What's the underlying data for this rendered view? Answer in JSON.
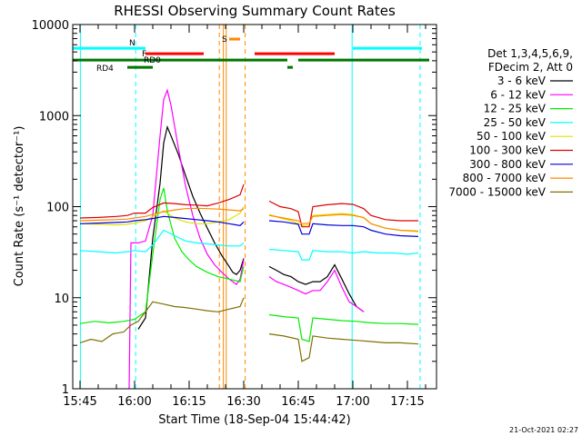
{
  "chart_data": {
    "type": "line",
    "title": "RHESSI Observing Summary Count Rates",
    "xlabel": "Start Time (18-Sep-04 15:44:42)",
    "ylabel": "Count Rate (s⁻¹ detector⁻¹)",
    "yscale": "log",
    "ylim": [
      1,
      10000
    ],
    "xlim": [
      -2,
      98
    ],
    "x_units": "minutes after 15:45",
    "x_ticks": [
      {
        "value": 0,
        "label": "15:45"
      },
      {
        "value": 15,
        "label": "16:00"
      },
      {
        "value": 30,
        "label": "16:15"
      },
      {
        "value": 45,
        "label": "16:30"
      },
      {
        "value": 60,
        "label": "16:45"
      },
      {
        "value": 75,
        "label": "17:00"
      },
      {
        "value": 90,
        "label": "17:15"
      }
    ],
    "y_ticks": [
      {
        "value": 1,
        "label": "1"
      },
      {
        "value": 10,
        "label": "10"
      },
      {
        "value": 100,
        "label": "100"
      },
      {
        "value": 1000,
        "label": "1000"
      },
      {
        "value": 10000,
        "label": "10000"
      }
    ],
    "legend_header": [
      "Det 1,3,4,5,6,9,",
      "FDecim 2, Att 0"
    ],
    "footer_date": "21-Oct-2021 02:27",
    "series": [
      {
        "name": "3 - 6 keV",
        "color": "#000000",
        "points": [
          [
            16,
            4.5
          ],
          [
            18,
            6
          ],
          [
            20,
            45
          ],
          [
            22,
            180
          ],
          [
            23,
            500
          ],
          [
            24,
            750
          ],
          [
            25,
            600
          ],
          [
            27,
            380
          ],
          [
            29,
            220
          ],
          [
            31,
            130
          ],
          [
            33,
            85
          ],
          [
            35,
            58
          ],
          [
            37,
            40
          ],
          [
            39,
            29
          ],
          [
            41,
            22
          ],
          [
            42,
            19
          ],
          [
            43,
            18
          ],
          [
            44,
            20
          ],
          [
            45,
            27
          ],
          null,
          [
            52,
            22
          ],
          [
            54,
            20
          ],
          [
            56,
            18
          ],
          [
            58,
            17
          ],
          [
            60,
            15
          ],
          [
            62,
            14
          ],
          [
            64,
            15
          ],
          [
            66,
            15
          ],
          [
            68,
            17
          ],
          [
            70,
            23
          ],
          [
            72,
            16
          ],
          [
            74,
            11
          ],
          [
            76,
            8
          ],
          [
            78,
            7
          ]
        ]
      },
      {
        "name": "6 - 12 keV",
        "color": "#ff00ff",
        "points": [
          [
            13.5,
            1
          ],
          [
            14,
            40
          ],
          [
            16,
            40
          ],
          [
            18,
            42
          ],
          [
            20,
            80
          ],
          [
            22,
            600
          ],
          [
            23,
            1500
          ],
          [
            24,
            1900
          ],
          [
            25,
            1300
          ],
          [
            27,
            450
          ],
          [
            29,
            170
          ],
          [
            31,
            80
          ],
          [
            33,
            45
          ],
          [
            35,
            30
          ],
          [
            37,
            23
          ],
          [
            39,
            19
          ],
          [
            41,
            16
          ],
          [
            43,
            14
          ],
          [
            44,
            16
          ],
          [
            45,
            26
          ],
          null,
          [
            52,
            17
          ],
          [
            54,
            15
          ],
          [
            56,
            14
          ],
          [
            58,
            13
          ],
          [
            60,
            12
          ],
          [
            62,
            11
          ],
          [
            64,
            12
          ],
          [
            66,
            12
          ],
          [
            68,
            15
          ],
          [
            70,
            20
          ],
          [
            72,
            13
          ],
          [
            74,
            9
          ],
          [
            76,
            8
          ],
          [
            78,
            7
          ]
        ]
      },
      {
        "name": "12 - 25 keV",
        "color": "#00ee00",
        "points": [
          [
            0,
            5.2
          ],
          [
            4,
            5.5
          ],
          [
            8,
            5.3
          ],
          [
            12,
            5.5
          ],
          [
            15,
            5.8
          ],
          [
            18,
            7
          ],
          [
            20,
            30
          ],
          [
            22,
            120
          ],
          [
            23,
            160
          ],
          [
            24,
            90
          ],
          [
            26,
            45
          ],
          [
            28,
            32
          ],
          [
            30,
            26
          ],
          [
            32,
            22
          ],
          [
            35,
            19
          ],
          [
            38,
            17
          ],
          [
            41,
            16
          ],
          [
            44,
            15
          ],
          [
            45,
            22
          ],
          null,
          [
            52,
            6.5
          ],
          [
            56,
            6.2
          ],
          [
            60,
            6
          ],
          [
            61,
            3.5
          ],
          [
            63,
            3.3
          ],
          [
            64,
            6
          ],
          [
            68,
            5.8
          ],
          [
            72,
            5.6
          ],
          [
            76,
            5.5
          ],
          [
            80,
            5.3
          ],
          [
            84,
            5.2
          ],
          [
            88,
            5.2
          ],
          [
            93,
            5.1
          ]
        ]
      },
      {
        "name": "25 - 50 keV",
        "color": "#00ffff",
        "points": [
          [
            0,
            33
          ],
          [
            5,
            32
          ],
          [
            10,
            31
          ],
          [
            13,
            32
          ],
          [
            15,
            33
          ],
          [
            18,
            32
          ],
          [
            20,
            38
          ],
          [
            23,
            55
          ],
          [
            26,
            48
          ],
          [
            29,
            42
          ],
          [
            32,
            40
          ],
          [
            35,
            39
          ],
          [
            38,
            38
          ],
          [
            41,
            37
          ],
          [
            44,
            37
          ],
          [
            45,
            40
          ],
          null,
          [
            52,
            34
          ],
          [
            56,
            33
          ],
          [
            60,
            32
          ],
          [
            61,
            26
          ],
          [
            63,
            26
          ],
          [
            64,
            33
          ],
          [
            68,
            32
          ],
          [
            72,
            32
          ],
          [
            75,
            31
          ],
          [
            78,
            32
          ],
          [
            82,
            31
          ],
          [
            86,
            31
          ],
          [
            90,
            30
          ],
          [
            93,
            31
          ]
        ]
      },
      {
        "name": "50 - 100 keV",
        "color": "#e0e000",
        "points": [
          [
            0,
            65
          ],
          [
            5,
            64
          ],
          [
            10,
            63
          ],
          [
            13,
            64
          ],
          [
            15,
            66
          ],
          [
            18,
            70
          ],
          [
            20,
            78
          ],
          [
            23,
            90
          ],
          [
            26,
            75
          ],
          [
            29,
            68
          ],
          [
            32,
            65
          ],
          [
            35,
            65
          ],
          [
            38,
            68
          ],
          [
            41,
            72
          ],
          [
            44,
            85
          ],
          [
            45,
            100
          ],
          null,
          [
            52,
            82
          ],
          [
            55,
            75
          ],
          [
            58,
            70
          ],
          [
            60,
            65
          ],
          [
            61,
            62
          ],
          [
            63,
            63
          ],
          [
            64,
            80
          ],
          [
            68,
            82
          ],
          [
            72,
            84
          ],
          [
            75,
            82
          ],
          [
            78,
            75
          ],
          [
            80,
            65
          ],
          [
            84,
            58
          ],
          [
            88,
            55
          ],
          [
            93,
            53
          ]
        ]
      },
      {
        "name": "100 - 300 keV",
        "color": "#dd0000",
        "points": [
          [
            0,
            75
          ],
          [
            5,
            76
          ],
          [
            10,
            78
          ],
          [
            13,
            80
          ],
          [
            15,
            85
          ],
          [
            18,
            85
          ],
          [
            20,
            98
          ],
          [
            23,
            110
          ],
          [
            26,
            108
          ],
          [
            29,
            105
          ],
          [
            32,
            104
          ],
          [
            35,
            102
          ],
          [
            38,
            110
          ],
          [
            41,
            120
          ],
          [
            44,
            135
          ],
          [
            45,
            175
          ],
          null,
          [
            52,
            115
          ],
          [
            55,
            100
          ],
          [
            58,
            95
          ],
          [
            60,
            88
          ],
          [
            61,
            60
          ],
          [
            63,
            60
          ],
          [
            64,
            100
          ],
          [
            68,
            105
          ],
          [
            72,
            108
          ],
          [
            75,
            106
          ],
          [
            78,
            95
          ],
          [
            80,
            80
          ],
          [
            84,
            72
          ],
          [
            88,
            70
          ],
          [
            93,
            70
          ]
        ]
      },
      {
        "name": "300 - 800 keV",
        "color": "#0000dd",
        "points": [
          [
            0,
            65
          ],
          [
            5,
            66
          ],
          [
            10,
            67
          ],
          [
            13,
            68
          ],
          [
            15,
            70
          ],
          [
            18,
            72
          ],
          [
            20,
            74
          ],
          [
            23,
            78
          ],
          [
            26,
            76
          ],
          [
            29,
            74
          ],
          [
            32,
            72
          ],
          [
            35,
            70
          ],
          [
            38,
            68
          ],
          [
            41,
            65
          ],
          [
            44,
            62
          ],
          [
            45,
            68
          ],
          null,
          [
            52,
            70
          ],
          [
            56,
            68
          ],
          [
            60,
            64
          ],
          [
            61,
            50
          ],
          [
            63,
            50
          ],
          [
            64,
            65
          ],
          [
            68,
            63
          ],
          [
            72,
            62
          ],
          [
            75,
            62
          ],
          [
            78,
            60
          ],
          [
            80,
            55
          ],
          [
            84,
            50
          ],
          [
            88,
            48
          ],
          [
            93,
            47
          ]
        ]
      },
      {
        "name": "800 - 7000 keV",
        "color": "#ff8800",
        "points": [
          [
            0,
            70
          ],
          [
            5,
            71
          ],
          [
            10,
            72
          ],
          [
            13,
            73
          ],
          [
            15,
            75
          ],
          [
            18,
            78
          ],
          [
            20,
            82
          ],
          [
            23,
            88
          ],
          [
            26,
            92
          ],
          [
            29,
            95
          ],
          [
            32,
            96
          ],
          [
            35,
            95
          ],
          [
            38,
            94
          ],
          [
            41,
            92
          ],
          [
            44,
            90
          ],
          [
            45,
            95
          ],
          null,
          [
            52,
            80
          ],
          [
            56,
            75
          ],
          [
            60,
            70
          ],
          [
            61,
            65
          ],
          [
            63,
            66
          ],
          [
            64,
            78
          ],
          [
            68,
            80
          ],
          [
            72,
            82
          ],
          [
            75,
            80
          ],
          [
            78,
            76
          ],
          [
            80,
            65
          ],
          [
            84,
            58
          ],
          [
            88,
            55
          ],
          [
            93,
            54
          ]
        ]
      },
      {
        "name": "7000 - 15000 keV",
        "color": "#807000",
        "points": [
          [
            0,
            3.2
          ],
          [
            3,
            3.5
          ],
          [
            6,
            3.3
          ],
          [
            9,
            4
          ],
          [
            12,
            4.2
          ],
          [
            14,
            5
          ],
          [
            16,
            5.5
          ],
          [
            18,
            7
          ],
          [
            20,
            9
          ],
          [
            23,
            8.5
          ],
          [
            26,
            8
          ],
          [
            29,
            7.8
          ],
          [
            32,
            7.5
          ],
          [
            35,
            7.2
          ],
          [
            38,
            7
          ],
          [
            41,
            7.5
          ],
          [
            44,
            8
          ],
          [
            45,
            10
          ],
          null,
          [
            52,
            4
          ],
          [
            56,
            3.8
          ],
          [
            60,
            3.5
          ],
          [
            61,
            2
          ],
          [
            63,
            2.2
          ],
          [
            64,
            3.8
          ],
          [
            68,
            3.6
          ],
          [
            72,
            3.5
          ],
          [
            76,
            3.4
          ],
          [
            80,
            3.3
          ],
          [
            84,
            3.2
          ],
          [
            88,
            3.2
          ],
          [
            93,
            3.1
          ]
        ]
      }
    ],
    "flag_bars": [
      {
        "label": "N",
        "color": "#00ffff",
        "y_log": 3.74,
        "segments": [
          [
            -2,
            18
          ],
          [
            75,
            94
          ]
        ]
      },
      {
        "label": "F",
        "color": "#ff0000",
        "y_log": 3.68,
        "segments": [
          [
            18,
            34
          ],
          [
            48,
            70
          ]
        ]
      },
      {
        "label": "S",
        "color": "#ff8800",
        "y_log": 3.84,
        "segments": [
          [
            41,
            44
          ]
        ]
      },
      {
        "label": "RD0",
        "color": "#007700",
        "y_log": 3.61,
        "segments": [
          [
            -2,
            57
          ],
          [
            60,
            96
          ]
        ]
      },
      {
        "label": "RD4",
        "color": "#007700",
        "y_log": 3.53,
        "segments": [
          [
            13,
            20
          ],
          [
            57,
            58.5
          ]
        ]
      }
    ],
    "markers": [
      {
        "name": "cyan-dashed",
        "color": "#00ffff",
        "dashed": true,
        "x": [
          15.3,
          93.5
        ]
      },
      {
        "name": "cyan-solid",
        "color": "#00ffff",
        "dashed": false,
        "x": [
          0.1,
          74.8
        ]
      },
      {
        "name": "orange-dashed",
        "color": "#ff8800",
        "dashed": true,
        "x": [
          38.3,
          45.4
        ]
      },
      {
        "name": "orange-solid",
        "color": "#ff8800",
        "dashed": false,
        "x": [
          39.4,
          40.2
        ]
      }
    ]
  }
}
